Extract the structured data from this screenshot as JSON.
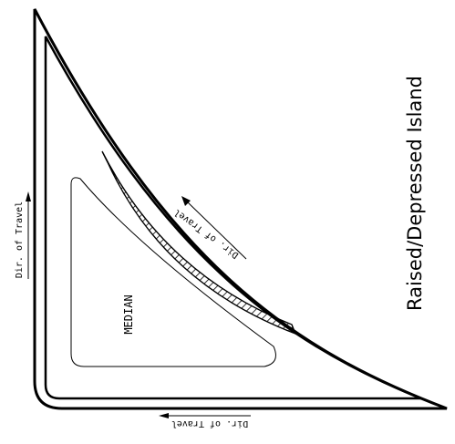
{
  "title": "Raised/Depressed Island",
  "labels": {
    "median": "MEDIAN",
    "dir_left": "Dir. of Travel",
    "dir_bottom": "Dir. of Travel",
    "dir_diagonal": "Dir. of Travel"
  },
  "colors": {
    "ink": "#000000",
    "background": "#ffffff"
  }
}
